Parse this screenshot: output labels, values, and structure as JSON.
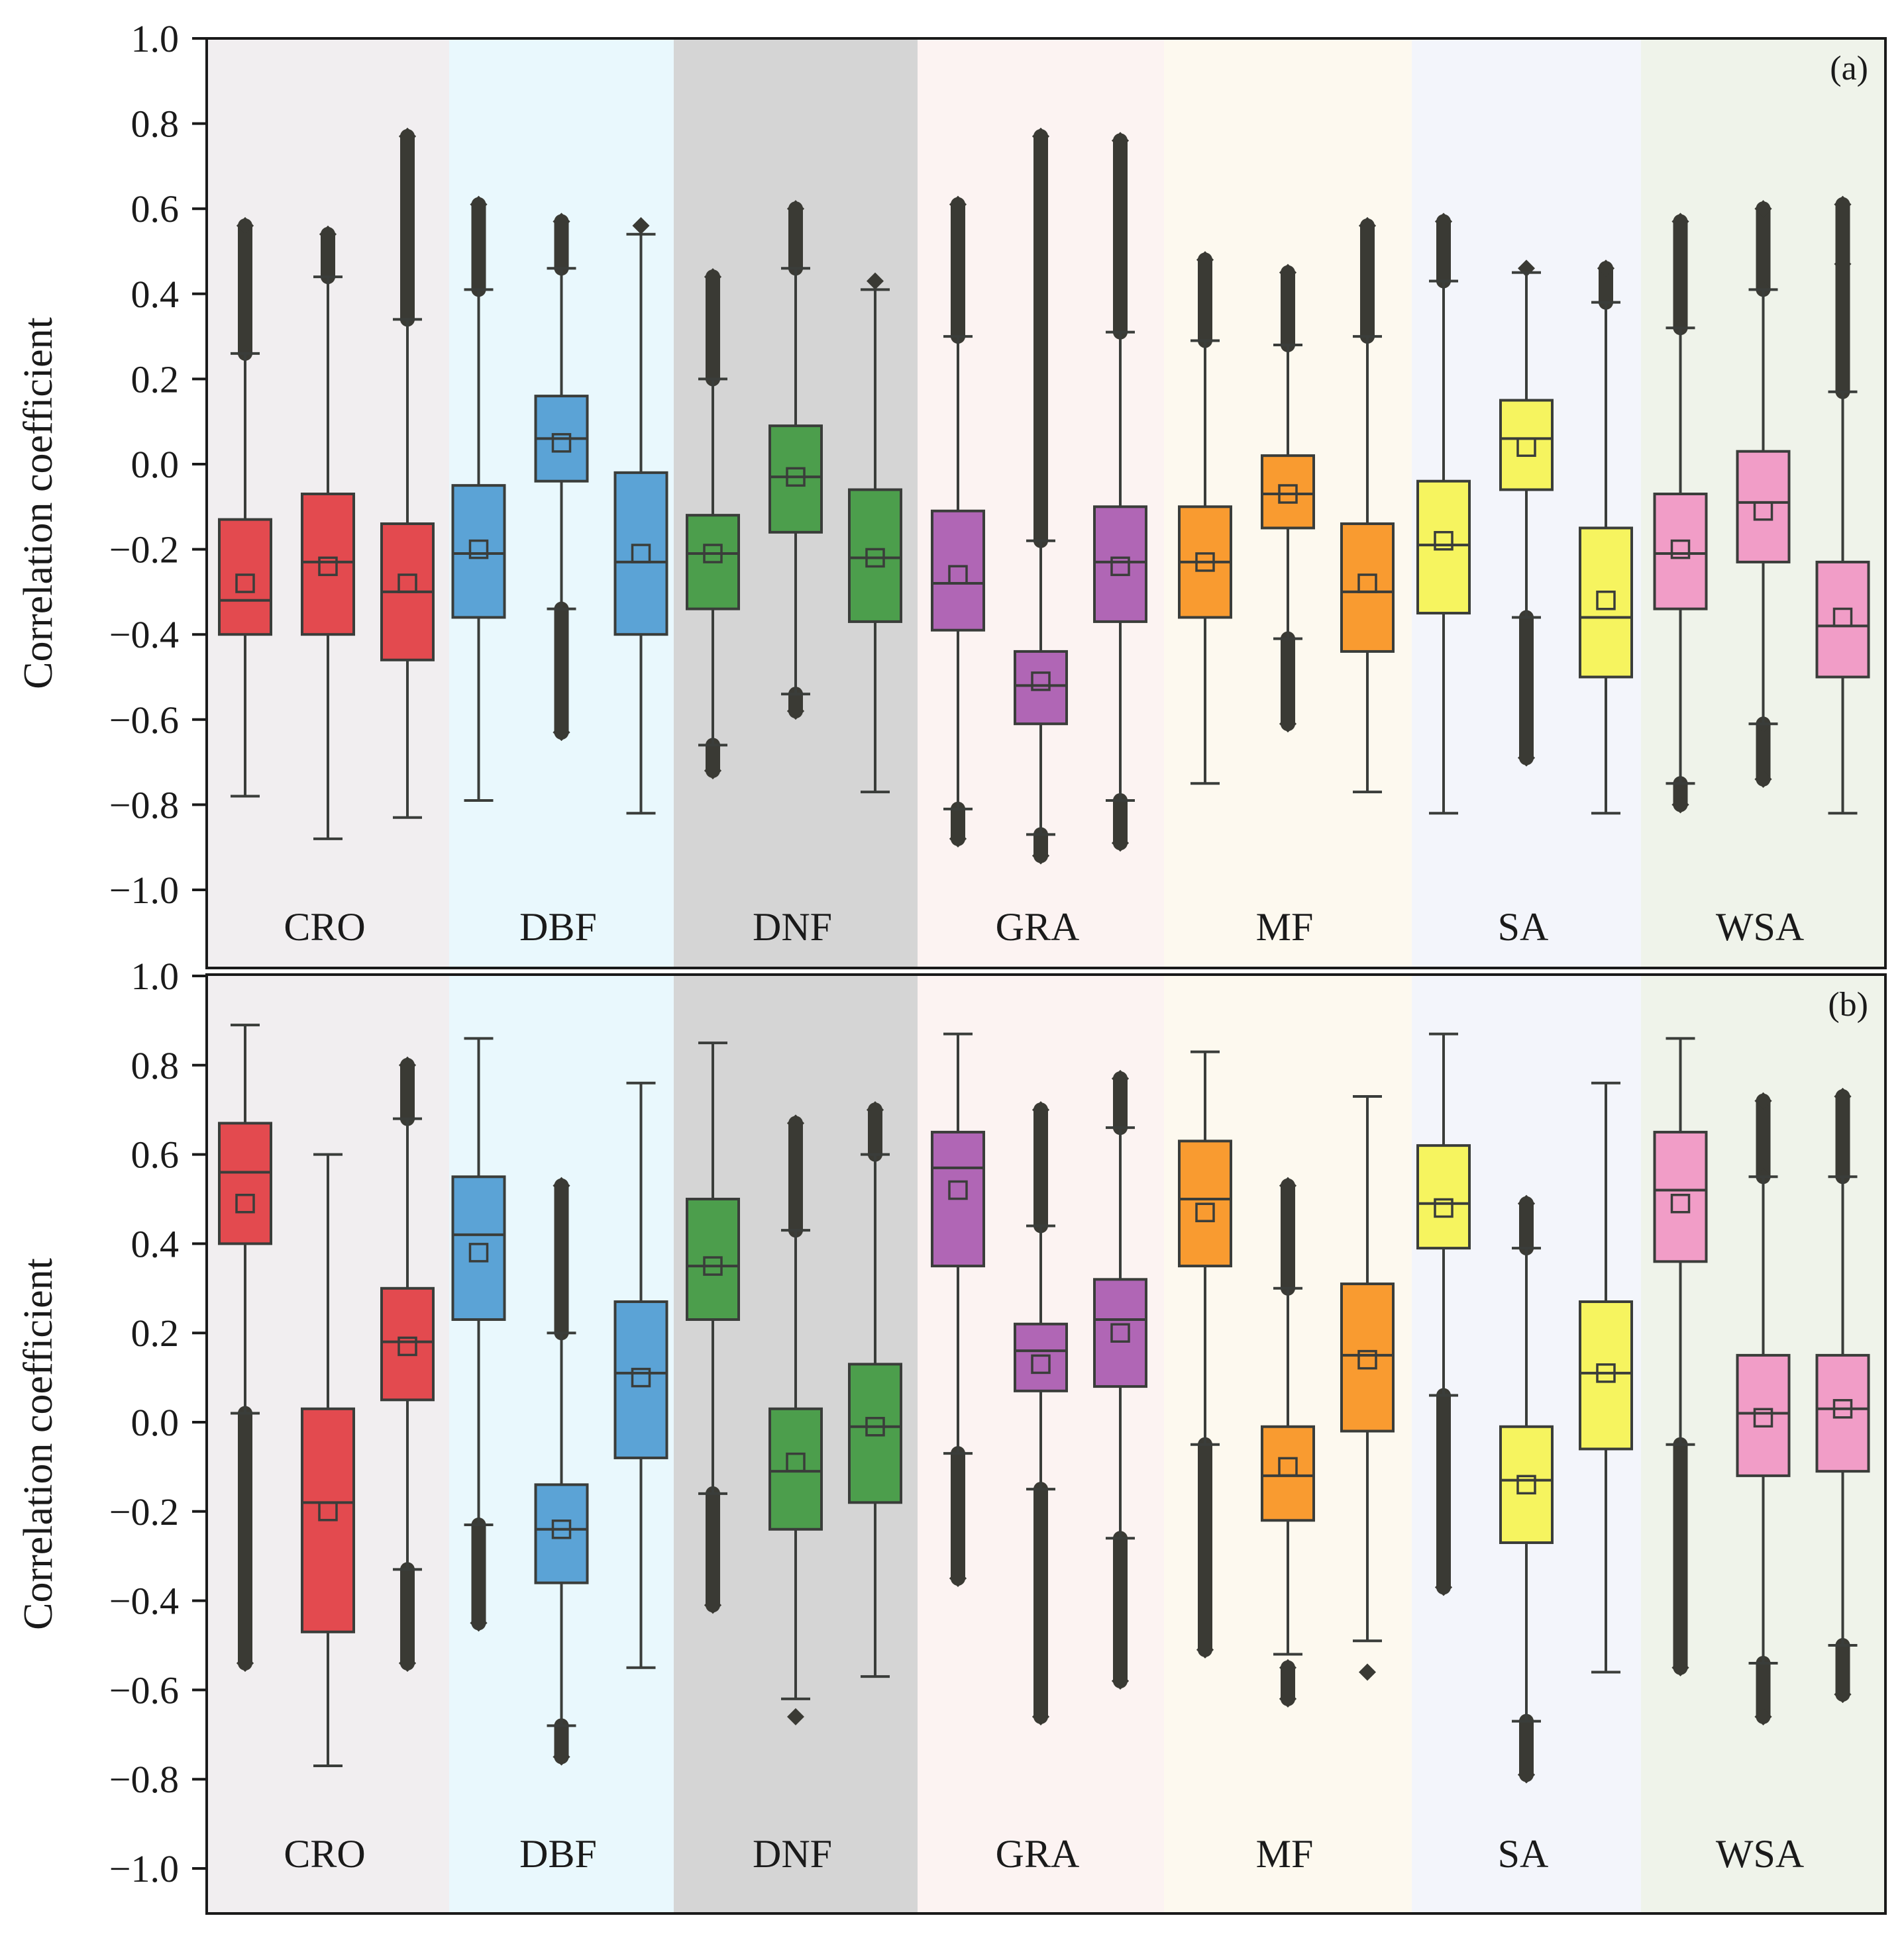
{
  "chart_data": [
    {
      "type": "box",
      "panel_label": "(a)",
      "ylabel": "Correlation coefficient",
      "ylim": [
        -1.0,
        1.0
      ],
      "yticks": [
        "1.0",
        "0.8",
        "0.6",
        "0.4",
        "0.2",
        "0.0",
        "−0.2",
        "−0.4",
        "−0.6",
        "−0.8",
        "−1.0"
      ],
      "grid": false,
      "groups": [
        {
          "label": "CRO",
          "color": "#e34a4f",
          "bg": "#f1eef0",
          "boxes": [
            {
              "q1": -0.4,
              "median": -0.32,
              "q3": -0.13,
              "mean": -0.28,
              "whisker_low": -0.78,
              "whisker_high": 0.26,
              "outliers_high": [
                0.26,
                0.56
              ],
              "outliers_low": []
            },
            {
              "q1": -0.4,
              "median": -0.23,
              "q3": -0.07,
              "mean": -0.24,
              "whisker_low": -0.88,
              "whisker_high": 0.44,
              "outliers_high": [
                0.44,
                0.54
              ],
              "outliers_low": []
            },
            {
              "q1": -0.46,
              "median": -0.3,
              "q3": -0.14,
              "mean": -0.28,
              "whisker_low": -0.83,
              "whisker_high": 0.34,
              "outliers_high": [
                0.34,
                0.77
              ],
              "outliers_low": []
            }
          ]
        },
        {
          "label": "DBF",
          "color": "#5ba3d6",
          "bg": "#e9f8fd",
          "boxes": [
            {
              "q1": -0.36,
              "median": -0.21,
              "q3": -0.05,
              "mean": -0.2,
              "whisker_low": -0.79,
              "whisker_high": 0.41,
              "outliers_high": [
                0.41,
                0.61
              ],
              "outliers_low": []
            },
            {
              "q1": -0.04,
              "median": 0.06,
              "q3": 0.16,
              "mean": 0.05,
              "whisker_low": -0.34,
              "whisker_high": 0.46,
              "outliers_high": [
                0.46,
                0.57
              ],
              "outliers_low": [
                -0.34,
                -0.63
              ]
            },
            {
              "q1": -0.4,
              "median": -0.23,
              "q3": -0.02,
              "mean": -0.21,
              "whisker_low": -0.82,
              "whisker_high": 0.54,
              "outliers_high": [
                0.56
              ],
              "outliers_low": []
            }
          ]
        },
        {
          "label": "DNF",
          "color": "#4c9e4c",
          "bg": "#d5d5d5",
          "boxes": [
            {
              "q1": -0.34,
              "median": -0.21,
              "q3": -0.12,
              "mean": -0.21,
              "whisker_low": -0.66,
              "whisker_high": 0.2,
              "outliers_high": [
                0.2,
                0.44
              ],
              "outliers_low": [
                -0.66,
                -0.72
              ]
            },
            {
              "q1": -0.16,
              "median": -0.03,
              "q3": 0.09,
              "mean": -0.03,
              "whisker_low": -0.54,
              "whisker_high": 0.46,
              "outliers_high": [
                0.46,
                0.6
              ],
              "outliers_low": [
                -0.54,
                -0.58
              ]
            },
            {
              "q1": -0.37,
              "median": -0.22,
              "q3": -0.06,
              "mean": -0.22,
              "whisker_low": -0.77,
              "whisker_high": 0.41,
              "outliers_high": [
                0.43
              ],
              "outliers_low": []
            }
          ]
        },
        {
          "label": "GRA",
          "color": "#b066b5",
          "bg": "#fcf3f2",
          "boxes": [
            {
              "q1": -0.39,
              "median": -0.28,
              "q3": -0.11,
              "mean": -0.26,
              "whisker_low": -0.81,
              "whisker_high": 0.3,
              "outliers_high": [
                0.3,
                0.61
              ],
              "outliers_low": [
                -0.81,
                -0.88
              ]
            },
            {
              "q1": -0.61,
              "median": -0.52,
              "q3": -0.44,
              "mean": -0.51,
              "whisker_low": -0.87,
              "whisker_high": -0.18,
              "outliers_high": [
                -0.18,
                0.77
              ],
              "outliers_low": [
                -0.87,
                -0.92
              ]
            },
            {
              "q1": -0.37,
              "median": -0.23,
              "q3": -0.1,
              "mean": -0.24,
              "whisker_low": -0.79,
              "whisker_high": 0.31,
              "outliers_high": [
                0.31,
                0.76
              ],
              "outliers_low": [
                -0.79,
                -0.89
              ]
            }
          ]
        },
        {
          "label": "MF",
          "color": "#f99b30",
          "bg": "#fdf9ef",
          "boxes": [
            {
              "q1": -0.36,
              "median": -0.23,
              "q3": -0.1,
              "mean": -0.23,
              "whisker_low": -0.75,
              "whisker_high": 0.29,
              "outliers_high": [
                0.29,
                0.48
              ],
              "outliers_low": []
            },
            {
              "q1": -0.15,
              "median": -0.07,
              "q3": 0.02,
              "mean": -0.07,
              "whisker_low": -0.41,
              "whisker_high": 0.28,
              "outliers_high": [
                0.28,
                0.45
              ],
              "outliers_low": [
                -0.41,
                -0.61
              ]
            },
            {
              "q1": -0.44,
              "median": -0.3,
              "q3": -0.14,
              "mean": -0.28,
              "whisker_low": -0.77,
              "whisker_high": 0.3,
              "outliers_high": [
                0.3,
                0.56
              ],
              "outliers_low": []
            }
          ]
        },
        {
          "label": "SA",
          "color": "#f6f45f",
          "bg": "#f3f5fb",
          "boxes": [
            {
              "q1": -0.35,
              "median": -0.19,
              "q3": -0.04,
              "mean": -0.18,
              "whisker_low": -0.82,
              "whisker_high": 0.43,
              "outliers_high": [
                0.43,
                0.57
              ],
              "outliers_low": []
            },
            {
              "q1": -0.06,
              "median": 0.06,
              "q3": 0.15,
              "mean": 0.04,
              "whisker_low": -0.36,
              "whisker_high": 0.45,
              "outliers_high": [
                0.46
              ],
              "outliers_low": [
                -0.36,
                -0.69
              ]
            },
            {
              "q1": -0.5,
              "median": -0.36,
              "q3": -0.15,
              "mean": -0.32,
              "whisker_low": -0.82,
              "whisker_high": 0.38,
              "outliers_high": [
                0.38,
                0.46
              ],
              "outliers_low": []
            }
          ]
        },
        {
          "label": "WSA",
          "color": "#f19dc7",
          "bg": "#eff3ea",
          "boxes": [
            {
              "q1": -0.34,
              "median": -0.21,
              "q3": -0.07,
              "mean": -0.2,
              "whisker_low": -0.75,
              "whisker_high": 0.32,
              "outliers_high": [
                0.32,
                0.57
              ],
              "outliers_low": [
                -0.75,
                -0.8
              ]
            },
            {
              "q1": -0.23,
              "median": -0.09,
              "q3": 0.03,
              "mean": -0.11,
              "whisker_low": -0.61,
              "whisker_high": 0.41,
              "outliers_high": [
                0.41,
                0.6
              ],
              "outliers_low": [
                -0.61,
                -0.74
              ]
            },
            {
              "q1": -0.5,
              "median": -0.38,
              "q3": -0.23,
              "mean": -0.36,
              "whisker_low": -0.82,
              "whisker_high": 0.17,
              "outliers_high": [
                0.17,
                0.47,
                0.61
              ],
              "outliers_low": []
            }
          ]
        }
      ]
    },
    {
      "type": "box",
      "panel_label": "(b)",
      "ylabel": "Correlation coefficient",
      "ylim": [
        -1.0,
        1.0
      ],
      "yticks": [
        "1.0",
        "0.8",
        "0.6",
        "0.4",
        "0.2",
        "0.0",
        "−0.2",
        "−0.4",
        "−0.6",
        "−0.8",
        "−1.0"
      ],
      "grid": false,
      "groups": [
        {
          "label": "CRO",
          "color": "#e34a4f",
          "bg": "#f1eef0",
          "boxes": [
            {
              "q1": 0.4,
              "median": 0.56,
              "q3": 0.67,
              "mean": 0.49,
              "whisker_low": 0.02,
              "whisker_high": 0.89,
              "outliers_high": [],
              "outliers_low": [
                0.02,
                -0.54
              ]
            },
            {
              "q1": -0.47,
              "median": -0.18,
              "q3": 0.03,
              "mean": -0.2,
              "whisker_low": -0.77,
              "whisker_high": 0.6,
              "outliers_high": [],
              "outliers_low": []
            },
            {
              "q1": 0.05,
              "median": 0.18,
              "q3": 0.3,
              "mean": 0.17,
              "whisker_low": -0.33,
              "whisker_high": 0.68,
              "outliers_high": [
                0.68,
                0.8
              ],
              "outliers_low": [
                -0.33,
                -0.54
              ]
            }
          ]
        },
        {
          "label": "DBF",
          "color": "#5ba3d6",
          "bg": "#e9f8fd",
          "boxes": [
            {
              "q1": 0.23,
              "median": 0.42,
              "q3": 0.55,
              "mean": 0.38,
              "whisker_low": -0.23,
              "whisker_high": 0.86,
              "outliers_high": [],
              "outliers_low": [
                -0.23,
                -0.45
              ]
            },
            {
              "q1": -0.36,
              "median": -0.24,
              "q3": -0.14,
              "mean": -0.24,
              "whisker_low": -0.68,
              "whisker_high": 0.2,
              "outliers_high": [
                0.2,
                0.53
              ],
              "outliers_low": [
                -0.68,
                -0.75
              ]
            },
            {
              "q1": -0.08,
              "median": 0.11,
              "q3": 0.27,
              "mean": 0.1,
              "whisker_low": -0.55,
              "whisker_high": 0.76,
              "outliers_high": [],
              "outliers_low": []
            }
          ]
        },
        {
          "label": "DNF",
          "color": "#4c9e4c",
          "bg": "#d5d5d5",
          "boxes": [
            {
              "q1": 0.23,
              "median": 0.35,
              "q3": 0.5,
              "mean": 0.35,
              "whisker_low": -0.16,
              "whisker_high": 0.85,
              "outliers_high": [],
              "outliers_low": [
                -0.16,
                -0.41
              ]
            },
            {
              "q1": -0.24,
              "median": -0.11,
              "q3": 0.03,
              "mean": -0.09,
              "whisker_low": -0.62,
              "whisker_high": 0.43,
              "outliers_high": [
                0.43,
                0.67
              ],
              "outliers_low": [
                -0.66
              ]
            },
            {
              "q1": -0.18,
              "median": -0.01,
              "q3": 0.13,
              "mean": -0.01,
              "whisker_low": -0.57,
              "whisker_high": 0.6,
              "outliers_high": [
                0.6,
                0.7
              ],
              "outliers_low": []
            }
          ]
        },
        {
          "label": "GRA",
          "color": "#b066b5",
          "bg": "#fcf3f2",
          "boxes": [
            {
              "q1": 0.35,
              "median": 0.57,
              "q3": 0.65,
              "mean": 0.52,
              "whisker_low": -0.07,
              "whisker_high": 0.87,
              "outliers_high": [],
              "outliers_low": [
                -0.07,
                -0.35
              ]
            },
            {
              "q1": 0.07,
              "median": 0.16,
              "q3": 0.22,
              "mean": 0.13,
              "whisker_low": -0.15,
              "whisker_high": 0.44,
              "outliers_high": [
                0.44,
                0.7
              ],
              "outliers_low": [
                -0.15,
                -0.66
              ]
            },
            {
              "q1": 0.08,
              "median": 0.23,
              "q3": 0.32,
              "mean": 0.2,
              "whisker_low": -0.26,
              "whisker_high": 0.66,
              "outliers_high": [
                0.66,
                0.77
              ],
              "outliers_low": [
                -0.26,
                -0.58
              ]
            }
          ]
        },
        {
          "label": "MF",
          "color": "#f99b30",
          "bg": "#fdf9ef",
          "boxes": [
            {
              "q1": 0.35,
              "median": 0.5,
              "q3": 0.63,
              "mean": 0.47,
              "whisker_low": -0.05,
              "whisker_high": 0.83,
              "outliers_high": [],
              "outliers_low": [
                -0.05,
                -0.51
              ]
            },
            {
              "q1": -0.22,
              "median": -0.12,
              "q3": -0.01,
              "mean": -0.1,
              "whisker_low": -0.52,
              "whisker_high": 0.3,
              "outliers_high": [
                0.3,
                0.53
              ],
              "outliers_low": [
                -0.55,
                -0.62
              ]
            },
            {
              "q1": -0.02,
              "median": 0.15,
              "q3": 0.31,
              "mean": 0.14,
              "whisker_low": -0.49,
              "whisker_high": 0.73,
              "outliers_high": [],
              "outliers_low": [
                -0.56
              ]
            }
          ]
        },
        {
          "label": "SA",
          "color": "#f6f45f",
          "bg": "#f3f5fb",
          "boxes": [
            {
              "q1": 0.39,
              "median": 0.49,
              "q3": 0.62,
              "mean": 0.48,
              "whisker_low": 0.06,
              "whisker_high": 0.87,
              "outliers_high": [],
              "outliers_low": [
                0.06,
                -0.37
              ]
            },
            {
              "q1": -0.27,
              "median": -0.13,
              "q3": -0.01,
              "mean": -0.14,
              "whisker_low": -0.67,
              "whisker_high": 0.39,
              "outliers_high": [
                0.39,
                0.49
              ],
              "outliers_low": [
                -0.67,
                -0.79
              ]
            },
            {
              "q1": -0.06,
              "median": 0.11,
              "q3": 0.27,
              "mean": 0.11,
              "whisker_low": -0.56,
              "whisker_high": 0.76,
              "outliers_high": [],
              "outliers_low": []
            }
          ]
        },
        {
          "label": "WSA",
          "color": "#f19dc7",
          "bg": "#eff3ea",
          "boxes": [
            {
              "q1": 0.36,
              "median": 0.52,
              "q3": 0.65,
              "mean": 0.49,
              "whisker_low": -0.05,
              "whisker_high": 0.86,
              "outliers_high": [],
              "outliers_low": [
                -0.05,
                -0.55
              ]
            },
            {
              "q1": -0.12,
              "median": 0.02,
              "q3": 0.15,
              "mean": 0.01,
              "whisker_low": -0.54,
              "whisker_high": 0.55,
              "outliers_high": [
                0.55,
                0.72
              ],
              "outliers_low": [
                -0.54,
                -0.66
              ]
            },
            {
              "q1": -0.11,
              "median": 0.03,
              "q3": 0.15,
              "mean": 0.03,
              "whisker_low": -0.5,
              "whisker_high": 0.55,
              "outliers_high": [
                0.55,
                0.73
              ],
              "outliers_low": [
                -0.5,
                -0.61
              ]
            }
          ]
        }
      ]
    }
  ]
}
